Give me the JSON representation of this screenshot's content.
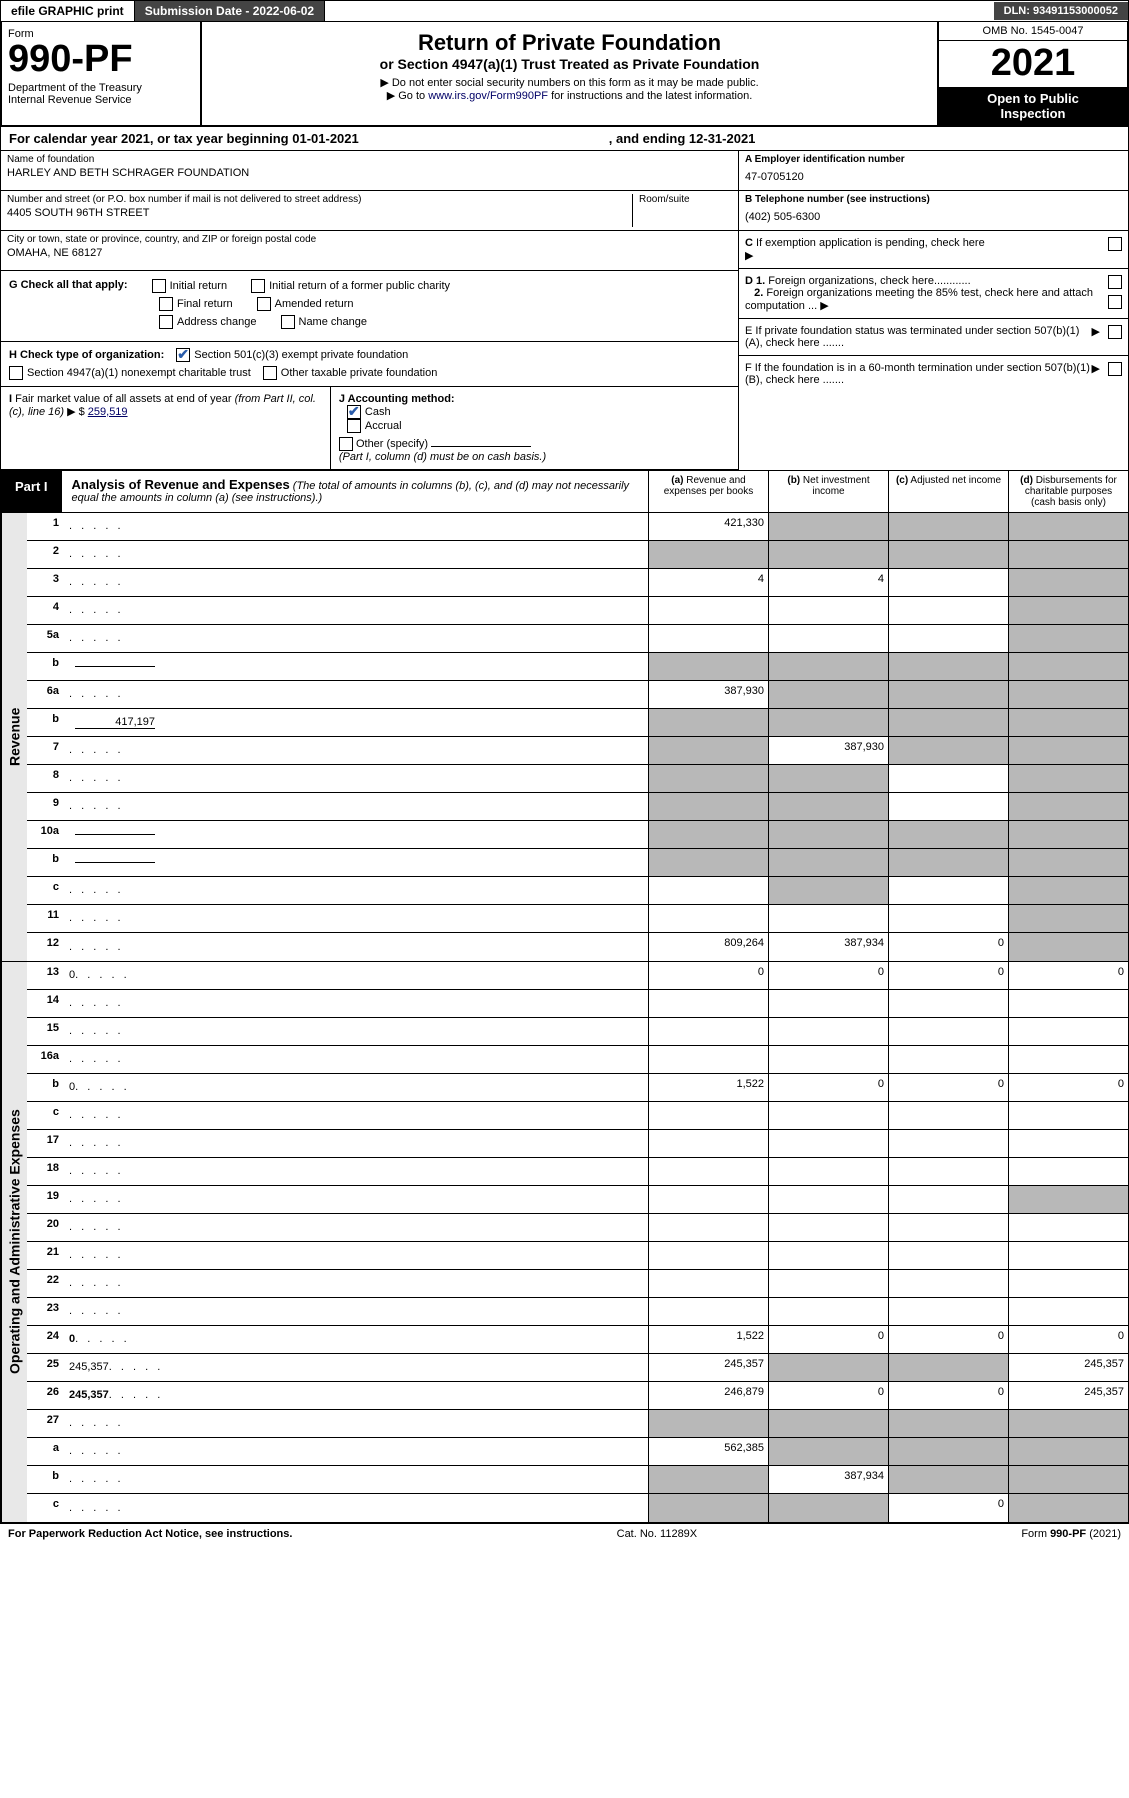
{
  "top_bar": {
    "efile": "efile GRAPHIC print",
    "sub_date_label": "Submission Date - ",
    "sub_date": "2022-06-02",
    "dln_label": "DLN: ",
    "dln": "93491153000052"
  },
  "header": {
    "form_label": "Form",
    "form_no": "990-PF",
    "dept": "Department of the Treasury\nInternal Revenue Service",
    "title1": "Return of Private Foundation",
    "title2": "or Section 4947(a)(1) Trust Treated as Private Foundation",
    "sub1": "▶ Do not enter social security numbers on this form as it may be made public.",
    "sub2": "▶ Go to www.irs.gov/Form990PF for instructions and the latest information.",
    "link_text": "www.irs.gov/Form990PF",
    "omb": "OMB No. 1545-0047",
    "year": "2021",
    "inspect": "Open to Public Inspection"
  },
  "cal_year": {
    "prefix": "For calendar year 2021, or tax year beginning ",
    "begin": "01-01-2021",
    "mid": ", and ending ",
    "end": "12-31-2021"
  },
  "info": {
    "name_label": "Name of foundation",
    "name": "HARLEY AND BETH SCHRAGER FOUNDATION",
    "addr_label": "Number and street (or P.O. box number if mail is not delivered to street address)",
    "room_label": "Room/suite",
    "addr": "4405 SOUTH 96TH STREET",
    "city_label": "City or town, state or province, country, and ZIP or foreign postal code",
    "city": "OMAHA, NE  68127",
    "a_label": "A Employer identification number",
    "a_val": "47-0705120",
    "b_label": "B Telephone number (see instructions)",
    "b_val": "(402) 505-6300",
    "c_label": "C If exemption application is pending, check here",
    "d1_label": "D 1. Foreign organizations, check here",
    "d2_label": "2. Foreign organizations meeting the 85% test, check here and attach computation ...",
    "e_label": "E  If private foundation status was terminated under section 507(b)(1)(A), check here .......",
    "f_label": "F  If the foundation is in a 60-month termination under section 507(b)(1)(B), check here ......."
  },
  "g": {
    "label": "G Check all that apply:",
    "initial": "Initial return",
    "initial_former": "Initial return of a former public charity",
    "final": "Final return",
    "amended": "Amended return",
    "addr_change": "Address change",
    "name_change": "Name change"
  },
  "h": {
    "label": "H Check type of organization:",
    "opt1": "Section 501(c)(3) exempt private foundation",
    "opt2": "Section 4947(a)(1) nonexempt charitable trust",
    "opt3": "Other taxable private foundation"
  },
  "i": {
    "label": "I Fair market value of all assets at end of year (from Part II, col. (c), line 16) ▶ $",
    "val": "259,519"
  },
  "j": {
    "label": "J Accounting method:",
    "cash": "Cash",
    "accrual": "Accrual",
    "other": "Other (specify)",
    "note": "(Part I, column (d) must be on cash basis.)"
  },
  "part1": {
    "label": "Part I",
    "title": "Analysis of Revenue and Expenses",
    "note": "(The total of amounts in columns (b), (c), and (d) may not necessarily equal the amounts in column (a) (see instructions).)",
    "col_a": "(a)  Revenue and expenses per books",
    "col_b": "(b)  Net investment income",
    "col_c": "(c)  Adjusted net income",
    "col_d": "(d)  Disbursements for charitable purposes (cash basis only)"
  },
  "side_labels": {
    "revenue": "Revenue",
    "expenses": "Operating and Administrative Expenses"
  },
  "rows": [
    {
      "n": "1",
      "d": "",
      "a": "421,330",
      "b": "",
      "c": "",
      "sb": true,
      "sc": true,
      "sd": true
    },
    {
      "n": "2",
      "d": "",
      "a": "",
      "b": "",
      "c": "",
      "sa": true,
      "sb": true,
      "sc": true,
      "sd": true,
      "bold_not": true
    },
    {
      "n": "3",
      "d": "",
      "a": "4",
      "b": "4",
      "c": "",
      "sd": true
    },
    {
      "n": "4",
      "d": "",
      "a": "",
      "b": "",
      "c": "",
      "sd": true
    },
    {
      "n": "5a",
      "d": "",
      "a": "",
      "b": "",
      "c": "",
      "sd": true
    },
    {
      "n": "b",
      "d": "",
      "a": "",
      "b": "",
      "c": "",
      "sa": true,
      "sb": true,
      "sc": true,
      "sd": true,
      "inline": ""
    },
    {
      "n": "6a",
      "d": "",
      "a": "387,930",
      "b": "",
      "c": "",
      "sb": true,
      "sc": true,
      "sd": true
    },
    {
      "n": "b",
      "d": "",
      "a": "",
      "b": "",
      "c": "",
      "sa": true,
      "sb": true,
      "sc": true,
      "sd": true,
      "inline": "417,197"
    },
    {
      "n": "7",
      "d": "",
      "a": "",
      "b": "387,930",
      "c": "",
      "sa": true,
      "sc": true,
      "sd": true
    },
    {
      "n": "8",
      "d": "",
      "a": "",
      "b": "",
      "c": "",
      "sa": true,
      "sb": true,
      "sd": true
    },
    {
      "n": "9",
      "d": "",
      "a": "",
      "b": "",
      "c": "",
      "sa": true,
      "sb": true,
      "sd": true
    },
    {
      "n": "10a",
      "d": "",
      "a": "",
      "b": "",
      "c": "",
      "sa": true,
      "sb": true,
      "sc": true,
      "sd": true,
      "inline": ""
    },
    {
      "n": "b",
      "d": "",
      "a": "",
      "b": "",
      "c": "",
      "sa": true,
      "sb": true,
      "sc": true,
      "sd": true,
      "inline": ""
    },
    {
      "n": "c",
      "d": "",
      "a": "",
      "b": "",
      "c": "",
      "sb": true,
      "sd": true
    },
    {
      "n": "11",
      "d": "",
      "a": "",
      "b": "",
      "c": "",
      "sd": true
    },
    {
      "n": "12",
      "d": "",
      "a": "809,264",
      "b": "387,934",
      "c": "0",
      "sd": true,
      "bold": true
    }
  ],
  "exp_rows": [
    {
      "n": "13",
      "d": "0",
      "a": "0",
      "b": "0",
      "c": "0"
    },
    {
      "n": "14",
      "d": "",
      "a": "",
      "b": "",
      "c": ""
    },
    {
      "n": "15",
      "d": "",
      "a": "",
      "b": "",
      "c": ""
    },
    {
      "n": "16a",
      "d": "",
      "a": "",
      "b": "",
      "c": ""
    },
    {
      "n": "b",
      "d": "0",
      "a": "1,522",
      "b": "0",
      "c": "0"
    },
    {
      "n": "c",
      "d": "",
      "a": "",
      "b": "",
      "c": ""
    },
    {
      "n": "17",
      "d": "",
      "a": "",
      "b": "",
      "c": ""
    },
    {
      "n": "18",
      "d": "",
      "a": "",
      "b": "",
      "c": ""
    },
    {
      "n": "19",
      "d": "",
      "a": "",
      "b": "",
      "c": "",
      "sd": true
    },
    {
      "n": "20",
      "d": "",
      "a": "",
      "b": "",
      "c": ""
    },
    {
      "n": "21",
      "d": "",
      "a": "",
      "b": "",
      "c": ""
    },
    {
      "n": "22",
      "d": "",
      "a": "",
      "b": "",
      "c": ""
    },
    {
      "n": "23",
      "d": "",
      "a": "",
      "b": "",
      "c": ""
    },
    {
      "n": "24",
      "d": "0",
      "a": "1,522",
      "b": "0",
      "c": "0",
      "bold": true
    },
    {
      "n": "25",
      "d": "245,357",
      "a": "245,357",
      "b": "",
      "c": "",
      "sb": true,
      "sc": true
    },
    {
      "n": "26",
      "d": "245,357",
      "a": "246,879",
      "b": "0",
      "c": "0",
      "bold": true
    },
    {
      "n": "27",
      "d": "",
      "a": "",
      "b": "",
      "c": "",
      "sa": true,
      "sb": true,
      "sc": true,
      "sd": true
    },
    {
      "n": "a",
      "d": "",
      "a": "562,385",
      "b": "",
      "c": "",
      "sb": true,
      "sc": true,
      "sd": true,
      "bold": true
    },
    {
      "n": "b",
      "d": "",
      "a": "",
      "b": "387,934",
      "c": "",
      "sa": true,
      "sc": true,
      "sd": true,
      "bold": true
    },
    {
      "n": "c",
      "d": "",
      "a": "",
      "b": "",
      "c": "0",
      "sa": true,
      "sb": true,
      "sd": true,
      "bold": true
    }
  ],
  "footer": {
    "left": "For Paperwork Reduction Act Notice, see instructions.",
    "mid": "Cat. No. 11289X",
    "right": "Form 990-PF (2021)"
  },
  "colors": {
    "black": "#000000",
    "dark_gray": "#444444",
    "shaded": "#b8b8b8",
    "side": "#e8e8e8",
    "link": "#000066",
    "check": "#2a5caa"
  }
}
